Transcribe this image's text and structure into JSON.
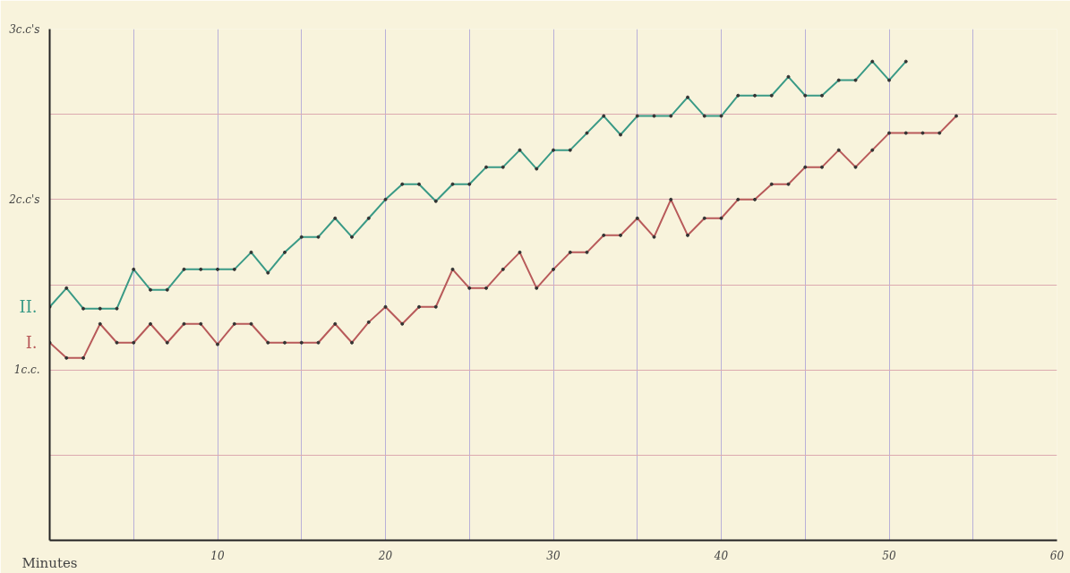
{
  "chart_data": {
    "type": "line",
    "xlabel": "Minutes",
    "x": [
      0,
      1,
      2,
      3,
      4,
      5,
      6,
      7,
      8,
      9,
      10,
      11,
      12,
      13,
      14,
      15,
      16,
      17,
      18,
      19,
      20,
      21,
      22,
      23,
      24,
      25,
      26,
      27,
      28,
      29,
      30,
      31,
      32,
      33,
      34,
      35,
      36,
      37,
      38,
      39,
      40,
      41,
      42,
      43,
      44,
      45,
      46,
      47,
      48,
      49,
      50,
      51,
      52,
      53,
      54
    ],
    "series": [
      {
        "name": "II.",
        "color": "#3a9a86",
        "values": [
          1.37,
          1.48,
          1.36,
          1.36,
          1.36,
          1.59,
          1.47,
          1.47,
          1.59,
          1.59,
          1.59,
          1.59,
          1.69,
          1.57,
          1.69,
          1.78,
          1.78,
          1.89,
          1.78,
          1.89,
          2.0,
          2.09,
          2.09,
          1.99,
          2.09,
          2.09,
          2.19,
          2.19,
          2.29,
          2.18,
          2.29,
          2.29,
          2.39,
          2.49,
          2.38,
          2.49,
          2.49,
          2.49,
          2.6,
          2.49,
          2.49,
          2.61,
          2.61,
          2.61,
          2.72,
          2.61,
          2.61,
          2.7,
          2.7,
          2.81,
          2.7,
          2.81,
          null,
          null,
          null
        ]
      },
      {
        "name": "I.",
        "color": "#b85a5a",
        "values": [
          1.16,
          1.07,
          1.07,
          1.27,
          1.16,
          1.16,
          1.27,
          1.16,
          1.27,
          1.27,
          1.15,
          1.27,
          1.27,
          1.16,
          1.16,
          1.16,
          1.16,
          1.27,
          1.16,
          1.28,
          1.37,
          1.27,
          1.37,
          1.37,
          1.59,
          1.48,
          1.48,
          1.59,
          1.69,
          1.48,
          1.59,
          1.69,
          1.69,
          1.79,
          1.79,
          1.89,
          1.78,
          2.0,
          1.79,
          1.89,
          1.89,
          2.0,
          2.0,
          2.09,
          2.09,
          2.19,
          2.19,
          2.29,
          2.19,
          2.29,
          2.39,
          2.39,
          2.39,
          2.39,
          2.49
        ]
      }
    ],
    "xlim": [
      0,
      60
    ],
    "ylim": [
      0,
      3
    ],
    "xticks": [
      {
        "value": 0,
        "label": null
      },
      {
        "value": 5,
        "label": null
      },
      10,
      {
        "value": 15,
        "label": null
      },
      20,
      {
        "value": 25,
        "label": null
      },
      30,
      {
        "value": 35,
        "label": null
      },
      40,
      {
        "value": 45,
        "label": null
      },
      50,
      {
        "value": 55,
        "label": null
      },
      60
    ],
    "yticks": [
      {
        "value": 0.5,
        "label": null
      },
      {
        "value": 1,
        "label": "1c.c."
      },
      {
        "value": 1.5,
        "label": null
      },
      {
        "value": 2,
        "label": "2c.c's"
      },
      {
        "value": 2.5,
        "label": null
      },
      {
        "value": 3,
        "label": "3c.c's"
      }
    ],
    "grid": true,
    "legend": false,
    "marker": "circle",
    "line_style": "solid"
  }
}
